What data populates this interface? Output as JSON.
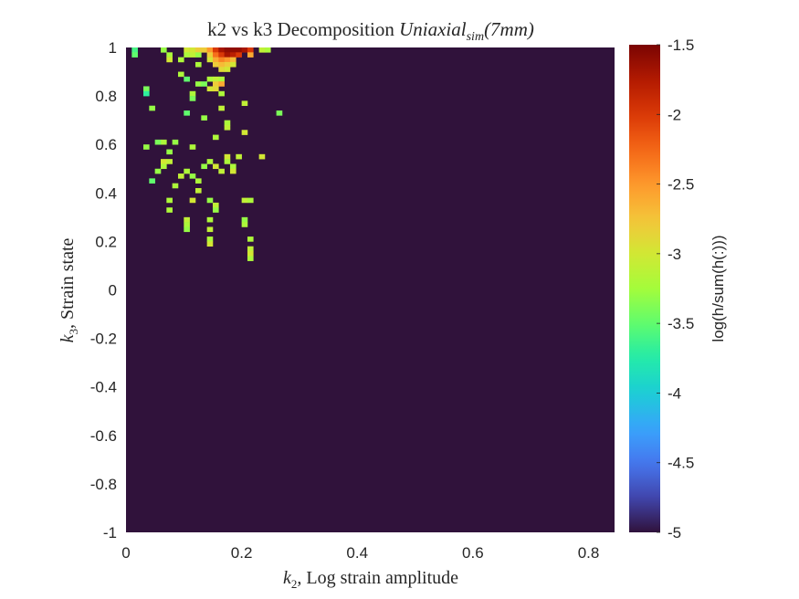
{
  "chart_data": {
    "type": "heatmap",
    "title": {
      "plain": "k2 vs k3 Decomposition ",
      "math_base": "Uniaxial",
      "math_sub": "sim",
      "math_tail": "(7mm)"
    },
    "xlabel": {
      "sym": "k",
      "sub": "2",
      "text": ", Log strain amplitude"
    },
    "ylabel": {
      "sym": "k",
      "sub": "3",
      "text": ", Strain state"
    },
    "xlim": [
      0,
      0.845
    ],
    "ylim": [
      -1,
      1
    ],
    "x_ticks": [
      "0",
      "0.2",
      "0.4",
      "0.6",
      "0.8"
    ],
    "y_ticks": [
      "-1",
      "-0.8",
      "-0.6",
      "-0.4",
      "-0.2",
      "0",
      "0.2",
      "0.4",
      "0.6",
      "0.8",
      "1"
    ],
    "bin_width": {
      "x": 0.01,
      "y": 0.02
    },
    "background_value": -5,
    "colorbar": {
      "label": "log(h/sum(h(:)))",
      "range": [
        -5,
        -1.5
      ],
      "ticks": [
        "-1.5",
        "-2",
        "-2.5",
        "-3",
        "-3.5",
        "-4",
        "-4.5",
        "-5"
      ],
      "colormap": "turbo"
    },
    "cells": [
      [
        0.015,
        0.99,
        -3.6
      ],
      [
        0.015,
        0.97,
        -3.5
      ],
      [
        0.065,
        0.99,
        -3.3
      ],
      [
        0.075,
        0.97,
        -3.2
      ],
      [
        0.075,
        0.95,
        -3.0
      ],
      [
        0.105,
        0.99,
        -3.0
      ],
      [
        0.115,
        0.99,
        -3.0
      ],
      [
        0.125,
        0.99,
        -2.8
      ],
      [
        0.135,
        0.99,
        -2.8
      ],
      [
        0.145,
        0.99,
        -2.5
      ],
      [
        0.155,
        0.99,
        -2.0
      ],
      [
        0.165,
        0.99,
        -1.7
      ],
      [
        0.175,
        0.99,
        -1.6
      ],
      [
        0.185,
        0.99,
        -1.6
      ],
      [
        0.195,
        0.99,
        -1.6
      ],
      [
        0.205,
        0.99,
        -1.7
      ],
      [
        0.215,
        0.99,
        -2.0
      ],
      [
        0.235,
        0.99,
        -3.1
      ],
      [
        0.245,
        0.99,
        -3.2
      ],
      [
        0.105,
        0.97,
        -3.2
      ],
      [
        0.115,
        0.97,
        -3.1
      ],
      [
        0.125,
        0.97,
        -3.3
      ],
      [
        0.145,
        0.97,
        -2.8
      ],
      [
        0.155,
        0.97,
        -2.3
      ],
      [
        0.165,
        0.97,
        -2.0
      ],
      [
        0.175,
        0.97,
        -1.7
      ],
      [
        0.185,
        0.97,
        -1.8
      ],
      [
        0.195,
        0.97,
        -2.0
      ],
      [
        0.215,
        0.97,
        -2.6
      ],
      [
        0.095,
        0.95,
        -3.2
      ],
      [
        0.145,
        0.95,
        -3.0
      ],
      [
        0.155,
        0.95,
        -2.6
      ],
      [
        0.165,
        0.95,
        -2.4
      ],
      [
        0.175,
        0.95,
        -2.5
      ],
      [
        0.185,
        0.95,
        -2.7
      ],
      [
        0.125,
        0.93,
        -3.2
      ],
      [
        0.155,
        0.93,
        -2.8
      ],
      [
        0.165,
        0.93,
        -2.7
      ],
      [
        0.175,
        0.93,
        -2.8
      ],
      [
        0.185,
        0.93,
        -3.0
      ],
      [
        0.165,
        0.91,
        -2.9
      ],
      [
        0.175,
        0.91,
        -3.0
      ],
      [
        0.095,
        0.89,
        -3.2
      ],
      [
        0.105,
        0.87,
        -3.5
      ],
      [
        0.145,
        0.87,
        -3.2
      ],
      [
        0.155,
        0.87,
        -3.1
      ],
      [
        0.165,
        0.87,
        -3.2
      ],
      [
        0.125,
        0.85,
        -3.3
      ],
      [
        0.135,
        0.85,
        -3.4
      ],
      [
        0.155,
        0.85,
        -2.8
      ],
      [
        0.165,
        0.85,
        -2.6
      ],
      [
        0.145,
        0.83,
        -3.0
      ],
      [
        0.155,
        0.83,
        -2.9
      ],
      [
        0.035,
        0.83,
        -3.4
      ],
      [
        0.035,
        0.81,
        -3.7
      ],
      [
        0.115,
        0.81,
        -3.2
      ],
      [
        0.165,
        0.81,
        -3.2
      ],
      [
        0.115,
        0.79,
        -3.4
      ],
      [
        0.045,
        0.75,
        -3.3
      ],
      [
        0.205,
        0.77,
        -3.1
      ],
      [
        0.165,
        0.75,
        -3.1
      ],
      [
        0.265,
        0.73,
        -3.4
      ],
      [
        0.105,
        0.73,
        -3.5
      ],
      [
        0.135,
        0.71,
        -3.3
      ],
      [
        0.175,
        0.69,
        -3.2
      ],
      [
        0.175,
        0.67,
        -3.1
      ],
      [
        0.205,
        0.65,
        -3.0
      ],
      [
        0.155,
        0.63,
        -3.2
      ],
      [
        0.085,
        0.61,
        -3.3
      ],
      [
        0.065,
        0.61,
        -3.2
      ],
      [
        0.055,
        0.61,
        -3.4
      ],
      [
        0.035,
        0.59,
        -3.3
      ],
      [
        0.115,
        0.59,
        -3.2
      ],
      [
        0.075,
        0.57,
        -3.3
      ],
      [
        0.175,
        0.55,
        -3.0
      ],
      [
        0.195,
        0.55,
        -3.1
      ],
      [
        0.235,
        0.55,
        -3.0
      ],
      [
        0.065,
        0.53,
        -3.0
      ],
      [
        0.075,
        0.53,
        -3.1
      ],
      [
        0.145,
        0.53,
        -3.2
      ],
      [
        0.175,
        0.53,
        -3.2
      ],
      [
        0.065,
        0.51,
        -3.2
      ],
      [
        0.135,
        0.51,
        -3.3
      ],
      [
        0.155,
        0.51,
        -3.0
      ],
      [
        0.185,
        0.51,
        -3.2
      ],
      [
        0.055,
        0.49,
        -3.3
      ],
      [
        0.105,
        0.49,
        -3.2
      ],
      [
        0.165,
        0.49,
        -3.1
      ],
      [
        0.185,
        0.49,
        -3.0
      ],
      [
        0.095,
        0.47,
        -3.1
      ],
      [
        0.115,
        0.47,
        -3.3
      ],
      [
        0.045,
        0.45,
        -3.5
      ],
      [
        0.125,
        0.45,
        -3.2
      ],
      [
        0.085,
        0.43,
        -3.2
      ],
      [
        0.125,
        0.41,
        -3.1
      ],
      [
        0.075,
        0.37,
        -3.2
      ],
      [
        0.115,
        0.37,
        -3.0
      ],
      [
        0.145,
        0.37,
        -3.3
      ],
      [
        0.205,
        0.37,
        -3.1
      ],
      [
        0.215,
        0.37,
        -3.2
      ],
      [
        0.075,
        0.33,
        -3.2
      ],
      [
        0.155,
        0.35,
        -3.1
      ],
      [
        0.155,
        0.33,
        -3.3
      ],
      [
        0.105,
        0.29,
        -3.1
      ],
      [
        0.145,
        0.29,
        -3.2
      ],
      [
        0.205,
        0.29,
        -3.3
      ],
      [
        0.105,
        0.27,
        -3.2
      ],
      [
        0.205,
        0.27,
        -3.2
      ],
      [
        0.105,
        0.25,
        -3.3
      ],
      [
        0.145,
        0.25,
        -3.1
      ],
      [
        0.145,
        0.21,
        -3.2
      ],
      [
        0.145,
        0.19,
        -3.0
      ],
      [
        0.215,
        0.21,
        -3.2
      ],
      [
        0.215,
        0.17,
        -3.1
      ],
      [
        0.215,
        0.15,
        -3.0
      ],
      [
        0.215,
        0.13,
        -3.2
      ]
    ]
  }
}
